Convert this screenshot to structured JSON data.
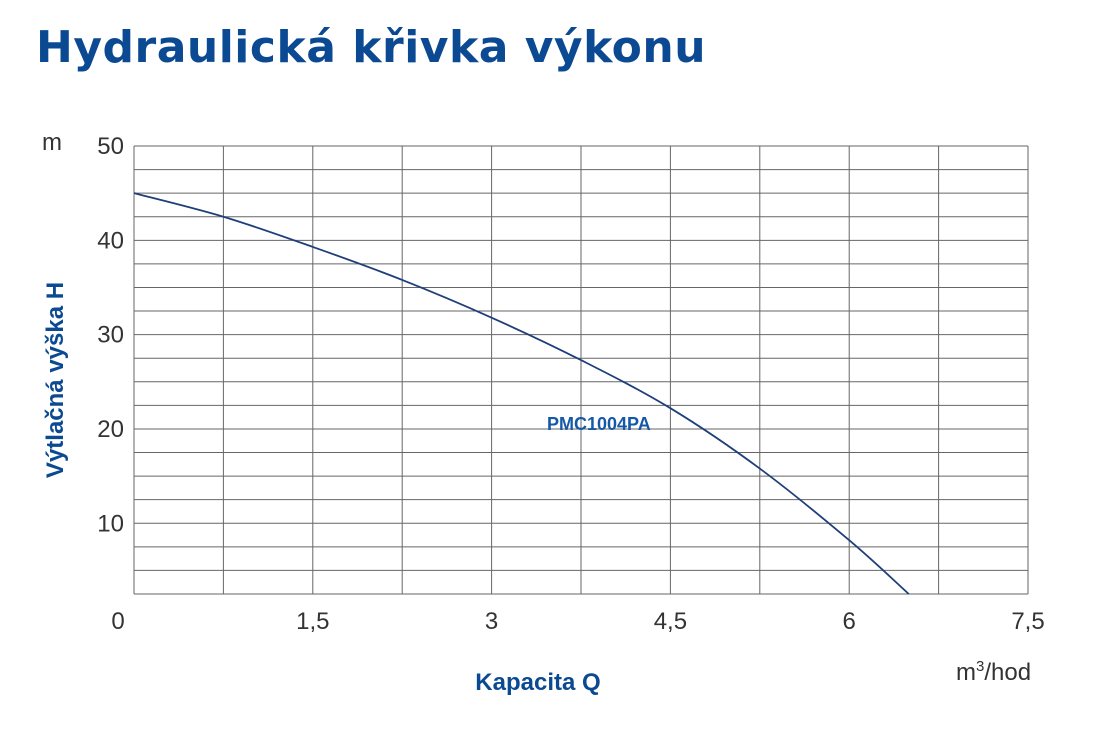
{
  "chart_data": {
    "type": "line",
    "title": "Hydraulická křivka výkonu",
    "xlabel": "Kapacita Q",
    "ylabel": "Výtlačná výška H",
    "x_unit_base": "m",
    "x_unit_sup": "3",
    "x_unit_rest": "/hod",
    "y_unit": "m",
    "xlim": [
      0,
      7.5
    ],
    "ylim": [
      2.5,
      50
    ],
    "x_ticks": [
      0,
      0.75,
      1.5,
      2.25,
      3,
      3.75,
      4.5,
      5.25,
      6,
      6.75,
      7.5
    ],
    "x_tick_labels": [
      {
        "value": 0,
        "label": "0"
      },
      {
        "value": 1.5,
        "label": "1,5"
      },
      {
        "value": 3,
        "label": "3"
      },
      {
        "value": 4.5,
        "label": "4,5"
      },
      {
        "value": 6,
        "label": "6"
      },
      {
        "value": 7.5,
        "label": "7,5"
      }
    ],
    "y_grid": [
      2.5,
      5,
      7.5,
      10,
      12.5,
      15,
      17.5,
      20,
      22.5,
      25,
      27.5,
      30,
      32.5,
      35,
      37.5,
      40,
      42.5,
      45,
      47.5,
      50
    ],
    "y_tick_labels": [
      {
        "value": 10,
        "label": "10"
      },
      {
        "value": 20,
        "label": "20"
      },
      {
        "value": 30,
        "label": "30"
      },
      {
        "value": 40,
        "label": "40"
      },
      {
        "value": 50,
        "label": "50"
      }
    ],
    "grid": true,
    "series": [
      {
        "name": "PMC1004PA",
        "color": "#1f3f7a",
        "x": [
          0,
          0.75,
          1.5,
          2.25,
          3,
          3.75,
          4.5,
          5.25,
          6,
          6.5
        ],
        "y": [
          45,
          42.5,
          39.3,
          35.8,
          31.8,
          27.3,
          22.2,
          15.8,
          8.2,
          2.5
        ]
      }
    ],
    "series_label_at": {
      "x": 3.9,
      "y": 20.5
    }
  },
  "colors": {
    "title": "#0b4a93",
    "axis_title": "#0b4a93",
    "grid": "#666666",
    "curve": "#1f3f7a",
    "series_label": "#1558a8"
  }
}
